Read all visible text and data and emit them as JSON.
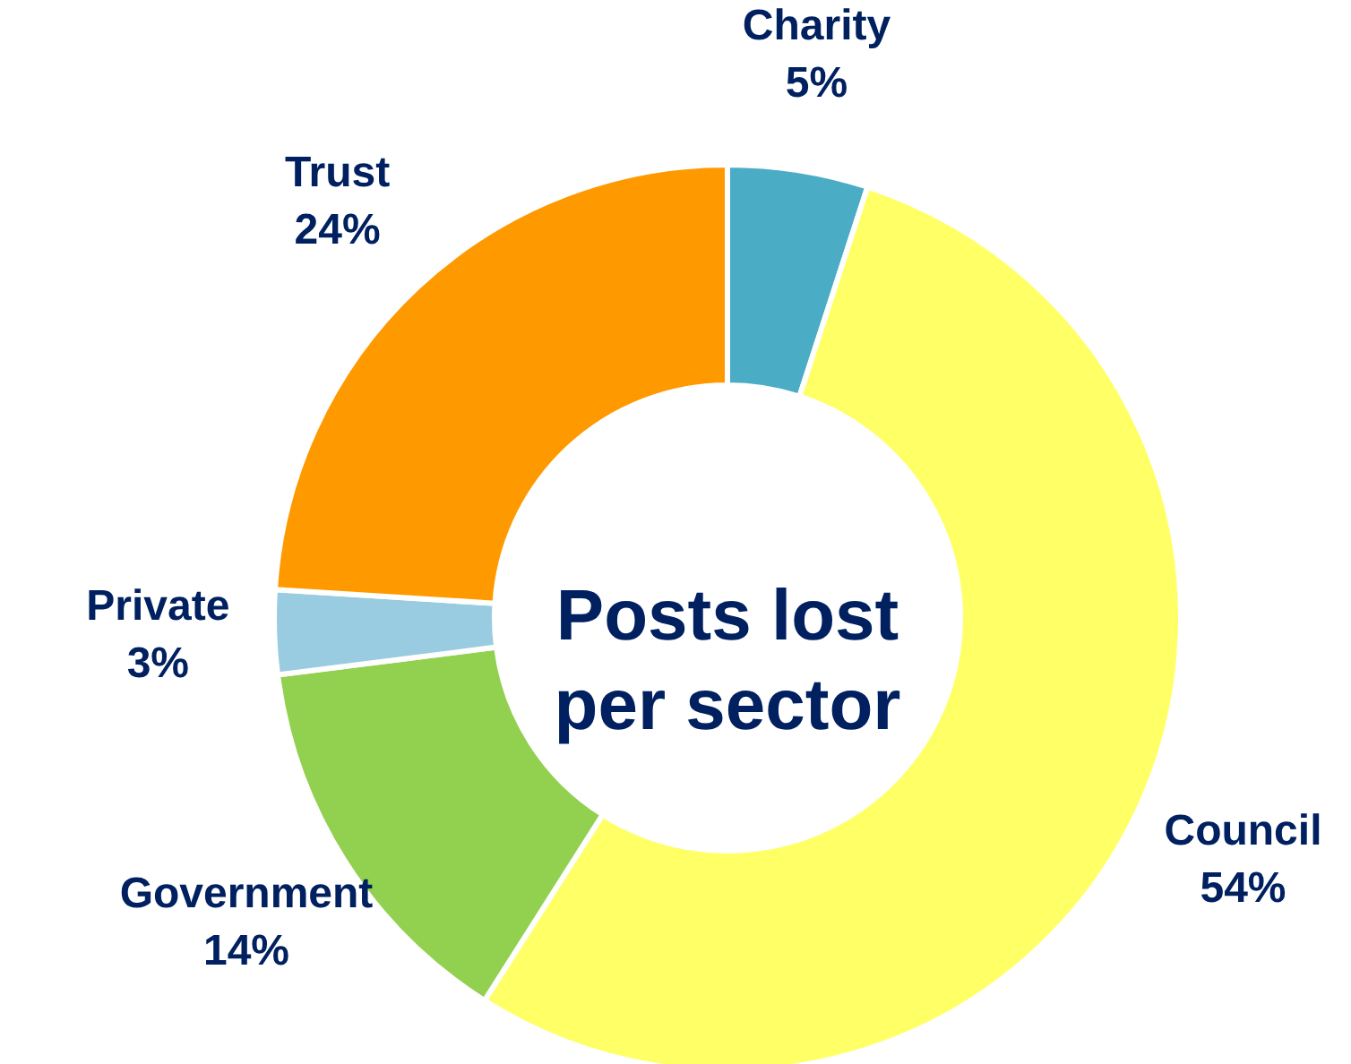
{
  "chart_data": {
    "type": "donut",
    "title": "Posts lost per sector",
    "categories": [
      "Charity",
      "Council",
      "Government",
      "Private",
      "Trust"
    ],
    "values": [
      5,
      54,
      14,
      3,
      24
    ],
    "value_labels": [
      "5%",
      "54%",
      "14%",
      "3%",
      "24%"
    ],
    "colors": [
      "#4bacc6",
      "#ffff66",
      "#92d050",
      "#99cce0",
      "#ff9900"
    ]
  }
}
